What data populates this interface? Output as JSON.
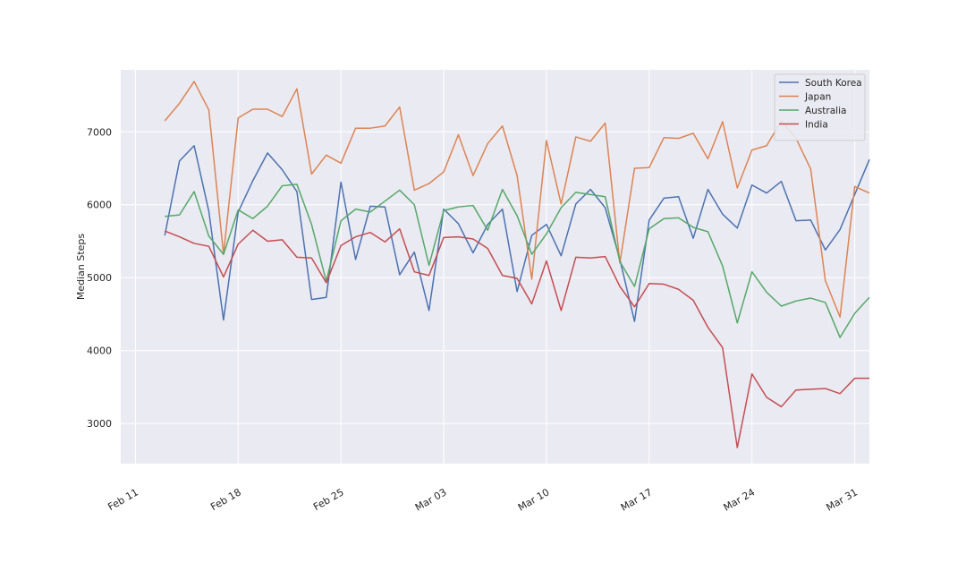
{
  "chart_data": {
    "type": "line",
    "ylabel": "Median Steps",
    "xlabel": "",
    "x_start": "2024-02-13",
    "x_end": "2024-03-31",
    "x_domain": [
      "2024-02-10",
      "2024-04-01"
    ],
    "ylim": [
      2450,
      7850
    ],
    "yticks": [
      3000,
      4000,
      5000,
      6000,
      7000
    ],
    "xticks": [
      {
        "date": "2024-02-11",
        "label": "Feb 11"
      },
      {
        "date": "2024-02-18",
        "label": "Feb 18"
      },
      {
        "date": "2024-02-25",
        "label": "Feb 25"
      },
      {
        "date": "2024-03-03",
        "label": "Mar 03"
      },
      {
        "date": "2024-03-10",
        "label": "Mar 10"
      },
      {
        "date": "2024-03-17",
        "label": "Mar 17"
      },
      {
        "date": "2024-03-24",
        "label": "Mar 24"
      },
      {
        "date": "2024-03-31",
        "label": "Mar 31"
      }
    ],
    "grid": true,
    "legend_position": "top-right",
    "series": [
      {
        "name": "South Korea",
        "color": "#4c72b0",
        "values": [
          5580,
          6600,
          6810,
          5910,
          4420,
          5900,
          6330,
          6710,
          6480,
          6180,
          4700,
          4730,
          6310,
          5250,
          5980,
          5970,
          5040,
          5350,
          4550,
          5940,
          5740,
          5340,
          5730,
          5940,
          4810,
          5580,
          5730,
          5300,
          6010,
          6210,
          5960,
          5250,
          4400,
          5790,
          6090,
          6110,
          5540,
          6210,
          5870,
          5680,
          6270,
          6160,
          6320,
          5780,
          5790,
          5380,
          5660,
          6140,
          6620
        ]
      },
      {
        "name": "Japan",
        "color": "#dd8452",
        "values": [
          7150,
          7390,
          7690,
          7300,
          5320,
          7190,
          7310,
          7310,
          7210,
          7590,
          6420,
          6680,
          6570,
          7050,
          7050,
          7080,
          7340,
          6200,
          6290,
          6450,
          6960,
          6400,
          6840,
          7080,
          6400,
          4980,
          6880,
          6010,
          6930,
          6870,
          7120,
          5200,
          6500,
          6510,
          6920,
          6910,
          6980,
          6630,
          7140,
          6230,
          6750,
          6810,
          7150,
          6910,
          6490,
          4960,
          4460,
          6250,
          6160
        ]
      },
      {
        "name": "Australia",
        "color": "#55a868",
        "values": [
          5840,
          5860,
          6180,
          5570,
          5320,
          5930,
          5810,
          5980,
          6260,
          6280,
          5730,
          4950,
          5780,
          5940,
          5900,
          6050,
          6200,
          6000,
          5170,
          5920,
          5970,
          5990,
          5650,
          6210,
          5850,
          5320,
          5600,
          5960,
          6170,
          6140,
          6110,
          5220,
          4880,
          5670,
          5810,
          5820,
          5690,
          5630,
          5160,
          4380,
          5080,
          4800,
          4610,
          4680,
          4720,
          4660,
          4180,
          4510,
          4730
        ]
      },
      {
        "name": "India",
        "color": "#c44e52",
        "values": [
          5640,
          5560,
          5470,
          5430,
          5010,
          5460,
          5650,
          5500,
          5520,
          5280,
          5270,
          4930,
          5440,
          5560,
          5620,
          5490,
          5670,
          5080,
          5030,
          5550,
          5560,
          5530,
          5400,
          5030,
          4990,
          4640,
          5230,
          4550,
          5280,
          5270,
          5290,
          4880,
          4600,
          4920,
          4910,
          4840,
          4690,
          4320,
          4040,
          2670,
          3680,
          3360,
          3230,
          3460,
          3470,
          3480,
          3410,
          3620,
          3620
        ]
      }
    ]
  }
}
